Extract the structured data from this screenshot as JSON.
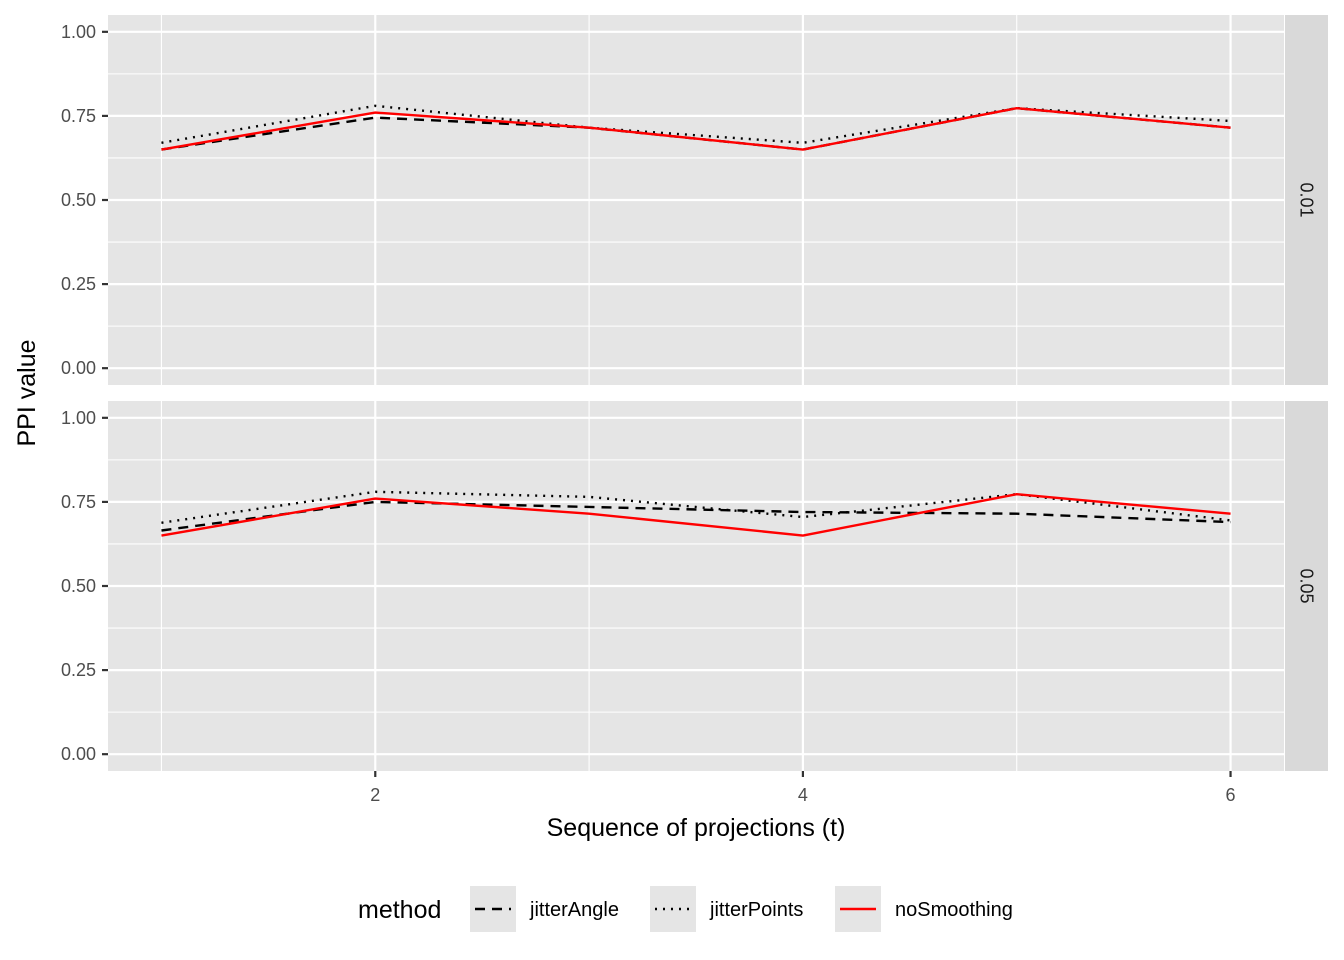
{
  "chart_data": {
    "type": "line",
    "xlabel": "Sequence of projections (t)",
    "ylabel": "PPI value",
    "x": [
      1,
      2,
      3,
      4,
      5,
      6
    ],
    "xlim": [
      0.75,
      6.25
    ],
    "ylim": [
      -0.05,
      1.05
    ],
    "x_ticks": [
      2,
      4,
      6
    ],
    "x_tick_labels": [
      "2",
      "4",
      "6"
    ],
    "y_ticks": [
      0,
      0.25,
      0.5,
      0.75,
      1
    ],
    "y_tick_labels": [
      "0.00",
      "0.25",
      "0.50",
      "0.75",
      "1.00"
    ],
    "grid": true,
    "legend": {
      "title": "method",
      "position": "bottom",
      "entries": [
        {
          "name": "jitterAngle",
          "color": "#000000",
          "dash": "dashed"
        },
        {
          "name": "jitterPoints",
          "color": "#000000",
          "dash": "dotted"
        },
        {
          "name": "noSmoothing",
          "color": "#ff0000",
          "dash": "solid"
        }
      ]
    },
    "facets": [
      {
        "label": "0.01",
        "series": [
          {
            "name": "jitterAngle",
            "values": [
              0.65,
              0.745,
              0.715,
              0.65,
              0.773,
              0.715
            ]
          },
          {
            "name": "jitterPoints",
            "values": [
              0.67,
              0.78,
              0.715,
              0.67,
              0.773,
              0.735
            ]
          },
          {
            "name": "noSmoothing",
            "values": [
              0.65,
              0.76,
              0.715,
              0.65,
              0.773,
              0.715
            ]
          }
        ]
      },
      {
        "label": "0.05",
        "series": [
          {
            "name": "jitterAngle",
            "values": [
              0.665,
              0.75,
              0.735,
              0.72,
              0.715,
              0.69
            ]
          },
          {
            "name": "jitterPoints",
            "values": [
              0.688,
              0.78,
              0.765,
              0.705,
              0.773,
              0.695
            ]
          },
          {
            "name": "noSmoothing",
            "values": [
              0.65,
              0.76,
              0.715,
              0.65,
              0.773,
              0.715
            ]
          }
        ]
      }
    ]
  }
}
